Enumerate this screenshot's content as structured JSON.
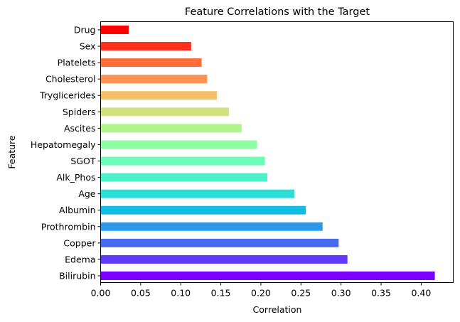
{
  "chart_data": {
    "type": "bar",
    "orientation": "horizontal",
    "title": "Feature Correlations with the Target",
    "xlabel": "Correlation",
    "ylabel": "Feature",
    "xlim": [
      0,
      0.44
    ],
    "xticks": [
      "0.00",
      "0.05",
      "0.10",
      "0.15",
      "0.20",
      "0.25",
      "0.30",
      "0.35",
      "0.40"
    ],
    "grid": false,
    "legend": "none",
    "categories": [
      "Bilirubin",
      "Edema",
      "Copper",
      "Prothrombin",
      "Albumin",
      "Age",
      "Alk_Phos",
      "SGOT",
      "Hepatomegaly",
      "Ascites",
      "Spiders",
      "Tryglicerides",
      "Cholesterol",
      "Platelets",
      "Sex",
      "Drug"
    ],
    "values": [
      0.417,
      0.308,
      0.297,
      0.277,
      0.256,
      0.242,
      0.208,
      0.205,
      0.195,
      0.176,
      0.16,
      0.145,
      0.133,
      0.126,
      0.113,
      0.035
    ],
    "colors": [
      "#7a00ff",
      "#6039fa",
      "#4669f0",
      "#2a9aeb",
      "#12bde5",
      "#2adfd8",
      "#4bf2c8",
      "#6bfdb8",
      "#8efea3",
      "#b0f58a",
      "#d2e07d",
      "#f6bd68",
      "#ff9252",
      "#ff6c3c",
      "#ff2f1c",
      "#ff0000"
    ]
  }
}
